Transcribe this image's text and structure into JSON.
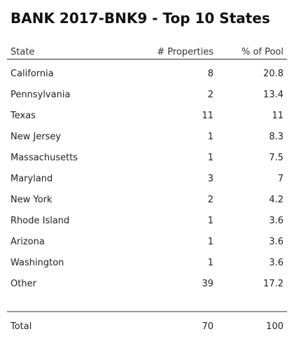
{
  "title": "BANK 2017-BNK9 - Top 10 States",
  "table": {
    "header": [
      "State",
      "# Properties",
      "% of Pool"
    ],
    "rows": [
      [
        "California",
        8,
        20.8
      ],
      [
        "Pennsylvania",
        2,
        13.4
      ],
      [
        "Texas",
        11,
        11
      ],
      [
        "New Jersey",
        1,
        8.3
      ],
      [
        "Massachusetts",
        1,
        7.5
      ],
      [
        "Maryland",
        3,
        7
      ],
      [
        "New York",
        2,
        4.2
      ],
      [
        "Rhode Island",
        1,
        3.6
      ],
      [
        "Arizona",
        1,
        3.6
      ],
      [
        "Washington",
        1,
        3.6
      ],
      [
        "Other",
        39,
        17.2
      ]
    ],
    "total": [
      "Total",
      70,
      100
    ]
  }
}
